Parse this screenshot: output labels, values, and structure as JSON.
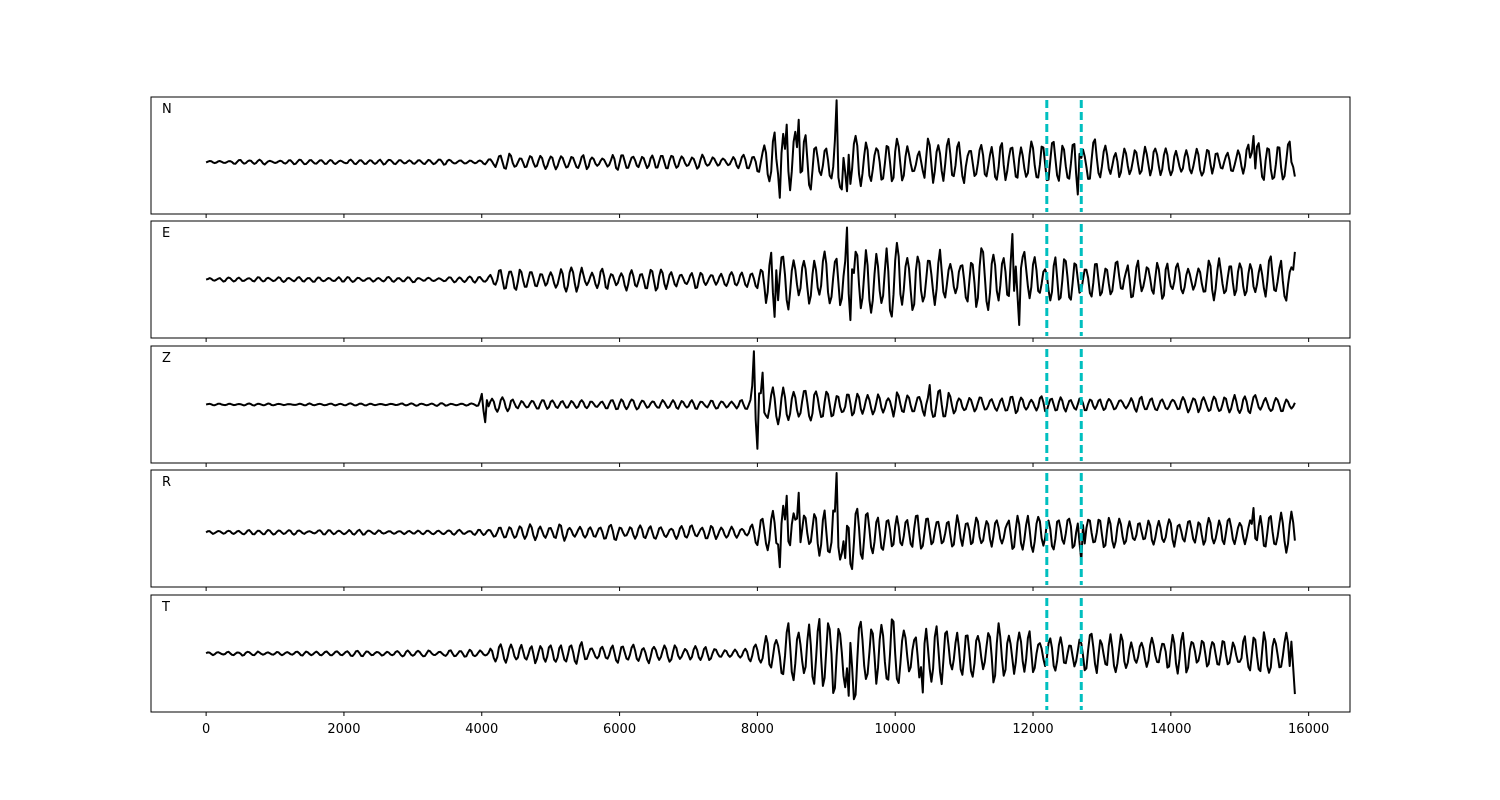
{
  "chart_data": {
    "type": "line",
    "title": "",
    "xlabel": "",
    "ylabel": "",
    "xlim": [
      -800,
      16600
    ],
    "xticks": [
      0,
      2000,
      4000,
      6000,
      8000,
      10000,
      12000,
      14000,
      16000
    ],
    "xtick_labels": [
      "0",
      "2000",
      "4000",
      "6000",
      "8000",
      "10000",
      "12000",
      "14000",
      "16000"
    ],
    "y_axis_visible": false,
    "grid": false,
    "legend": "none",
    "sample_count": 15800,
    "trace_color": "#000000",
    "marker_color": "#00BFBF",
    "vertical_markers": [
      {
        "x": 12200,
        "style": "dashed"
      },
      {
        "x": 12700,
        "style": "dashed"
      }
    ],
    "panels": [
      {
        "label": "N",
        "ylim": [
          -3.2,
          4.0
        ],
        "envelope": [
          [
            0,
            0.15
          ],
          [
            4000,
            0.2
          ],
          [
            4200,
            0.6
          ],
          [
            5000,
            0.6
          ],
          [
            6500,
            0.5
          ],
          [
            7800,
            0.5
          ],
          [
            8000,
            1.0
          ],
          [
            8200,
            2.2
          ],
          [
            8600,
            2.0
          ],
          [
            9000,
            1.6
          ],
          [
            9200,
            3.9
          ],
          [
            9500,
            1.8
          ],
          [
            11000,
            1.4
          ],
          [
            12400,
            1.6
          ],
          [
            12700,
            1.8
          ],
          [
            13000,
            1.2
          ],
          [
            15000,
            1.1
          ],
          [
            15200,
            2.0
          ],
          [
            15800,
            1.6
          ]
        ],
        "peaks": [
          {
            "x": 8330,
            "y": -2.2
          },
          {
            "x": 8420,
            "y": 2.3
          },
          {
            "x": 8600,
            "y": 2.6
          },
          {
            "x": 9150,
            "y": 3.8
          },
          {
            "x": 9300,
            "y": -1.8
          },
          {
            "x": 12650,
            "y": -2.0
          },
          {
            "x": 15200,
            "y": 1.6
          },
          {
            "x": 15800,
            "y": -0.9
          }
        ]
      },
      {
        "label": "E",
        "ylim": [
          -3.6,
          3.6
        ],
        "envelope": [
          [
            0,
            0.15
          ],
          [
            4000,
            0.2
          ],
          [
            4200,
            0.8
          ],
          [
            6000,
            0.8
          ],
          [
            7800,
            0.5
          ],
          [
            8000,
            1.5
          ],
          [
            8200,
            2.0
          ],
          [
            9000,
            2.5
          ],
          [
            9300,
            3.2
          ],
          [
            10000,
            2.4
          ],
          [
            11000,
            2.2
          ],
          [
            11500,
            2.6
          ],
          [
            11800,
            2.8
          ],
          [
            12000,
            1.6
          ],
          [
            13000,
            1.5
          ],
          [
            15000,
            1.4
          ],
          [
            15800,
            1.8
          ]
        ],
        "peaks": [
          {
            "x": 9300,
            "y": 3.2
          },
          {
            "x": 9350,
            "y": -2.5
          },
          {
            "x": 11700,
            "y": 2.8
          },
          {
            "x": 11800,
            "y": -2.8
          },
          {
            "x": 8250,
            "y": -2.3
          },
          {
            "x": 15800,
            "y": 1.7
          }
        ]
      },
      {
        "label": "Z",
        "ylim": [
          -3.3,
          3.3
        ],
        "envelope": [
          [
            0,
            0.05
          ],
          [
            3950,
            0.1
          ],
          [
            4000,
            0.7
          ],
          [
            4100,
            0.5
          ],
          [
            5000,
            0.3
          ],
          [
            7800,
            0.3
          ],
          [
            7900,
            1.0
          ],
          [
            7950,
            3.0
          ],
          [
            8050,
            2.4
          ],
          [
            8300,
            1.3
          ],
          [
            9000,
            1.0
          ],
          [
            10000,
            0.8
          ],
          [
            10500,
            1.1
          ],
          [
            11000,
            0.6
          ],
          [
            13000,
            0.5
          ],
          [
            15800,
            0.6
          ]
        ],
        "peaks": [
          {
            "x": 4000,
            "y": 0.6
          },
          {
            "x": 4050,
            "y": -1.0
          },
          {
            "x": 7950,
            "y": 3.0
          },
          {
            "x": 8000,
            "y": -2.5
          },
          {
            "x": 8080,
            "y": 1.8
          },
          {
            "x": 10500,
            "y": 1.1
          }
        ]
      },
      {
        "label": "R",
        "ylim": [
          -3.6,
          4.1
        ],
        "envelope": [
          [
            0,
            0.15
          ],
          [
            4000,
            0.2
          ],
          [
            4200,
            0.5
          ],
          [
            5000,
            0.6
          ],
          [
            6500,
            0.5
          ],
          [
            7800,
            0.5
          ],
          [
            8000,
            1.2
          ],
          [
            8200,
            2.3
          ],
          [
            8600,
            2.2
          ],
          [
            9000,
            1.6
          ],
          [
            9150,
            4.0
          ],
          [
            9500,
            1.8
          ],
          [
            11000,
            1.3
          ],
          [
            12400,
            1.6
          ],
          [
            12700,
            1.8
          ],
          [
            13000,
            1.1
          ],
          [
            15000,
            1.0
          ],
          [
            15200,
            1.8
          ],
          [
            15800,
            1.5
          ]
        ],
        "peaks": [
          {
            "x": 8330,
            "y": -2.3
          },
          {
            "x": 8420,
            "y": 2.4
          },
          {
            "x": 8600,
            "y": 2.6
          },
          {
            "x": 9150,
            "y": 3.9
          },
          {
            "x": 9280,
            "y": -1.7
          },
          {
            "x": 12700,
            "y": -1.9
          },
          {
            "x": 15200,
            "y": 1.6
          }
        ]
      },
      {
        "label": "T",
        "ylim": [
          -3.6,
          3.6
        ],
        "envelope": [
          [
            0,
            0.15
          ],
          [
            4000,
            0.25
          ],
          [
            4200,
            0.8
          ],
          [
            6000,
            0.8
          ],
          [
            7800,
            0.5
          ],
          [
            8000,
            1.5
          ],
          [
            8700,
            2.5
          ],
          [
            9350,
            3.3
          ],
          [
            10000,
            2.4
          ],
          [
            11000,
            2.2
          ],
          [
            11800,
            2.0
          ],
          [
            12000,
            1.4
          ],
          [
            13000,
            1.4
          ],
          [
            15000,
            1.4
          ],
          [
            15800,
            2.2
          ]
        ],
        "peaks": [
          {
            "x": 9350,
            "y": 3.3
          },
          {
            "x": 9330,
            "y": -2.6
          },
          {
            "x": 10400,
            "y": -2.4
          },
          {
            "x": 15780,
            "y": 2.1
          },
          {
            "x": 15800,
            "y": -2.5
          }
        ]
      }
    ]
  }
}
